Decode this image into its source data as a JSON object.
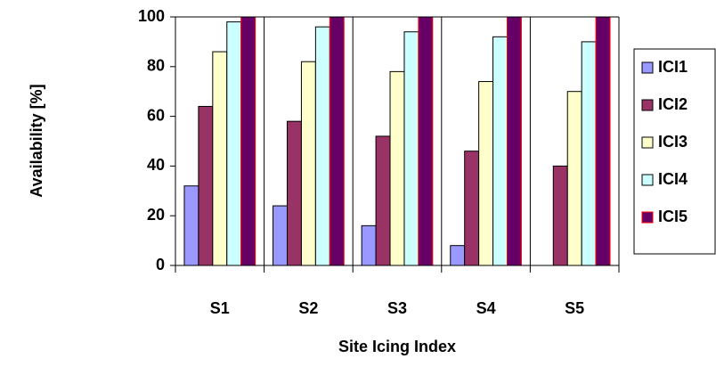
{
  "chart_data": {
    "type": "bar",
    "y_label": "Availability [%]",
    "x_label": "Site Icing Index",
    "categories": [
      "S1",
      "S2",
      "S3",
      "S4",
      "S5"
    ],
    "series": [
      {
        "name": "ICI1",
        "color": "#9999ff",
        "edgecolor": "#000000",
        "values": [
          32,
          24,
          16,
          8,
          0
        ]
      },
      {
        "name": "ICI2",
        "color": "#993366",
        "edgecolor": "#000000",
        "values": [
          64,
          58,
          52,
          46,
          40
        ]
      },
      {
        "name": "ICI3",
        "color": "#ffffcc",
        "edgecolor": "#000000",
        "values": [
          86,
          82,
          78,
          74,
          70
        ]
      },
      {
        "name": "ICI4",
        "color": "#ccffff",
        "edgecolor": "#000000",
        "values": [
          98,
          96,
          94,
          92,
          90
        ]
      },
      {
        "name": "ICI5",
        "color": "#660066",
        "edgecolor": "#ff0000",
        "values": [
          100,
          100,
          100,
          100,
          100
        ]
      }
    ],
    "ylim": [
      0,
      100
    ],
    "yticks": [
      0,
      20,
      40,
      60,
      80,
      100
    ],
    "legend": "right"
  }
}
